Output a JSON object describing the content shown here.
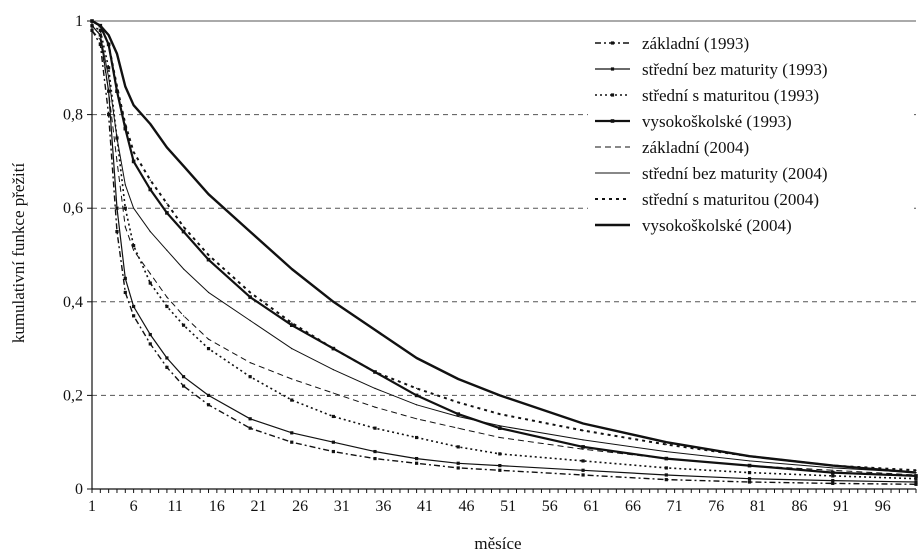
{
  "chart_data": {
    "type": "line",
    "title": "",
    "xlabel": "měsíce",
    "ylabel": "kumulativní funkce přežití",
    "xlim": [
      1,
      100
    ],
    "ylim": [
      0,
      1
    ],
    "x_ticks": [
      1,
      6,
      11,
      16,
      21,
      26,
      31,
      36,
      41,
      46,
      51,
      56,
      61,
      66,
      71,
      76,
      81,
      86,
      91,
      96
    ],
    "y_ticks": [
      0,
      0.2,
      0.4,
      0.6,
      0.8,
      1
    ],
    "y_tick_labels": [
      "0",
      "0,2",
      "0,4",
      "0,6",
      "0,8",
      "1"
    ],
    "grid": "horizontal dashed",
    "legend_position": "top-right",
    "x": [
      1,
      2,
      3,
      4,
      5,
      6,
      8,
      10,
      12,
      15,
      20,
      25,
      30,
      35,
      40,
      45,
      50,
      60,
      70,
      80,
      90,
      100
    ],
    "series": [
      {
        "name": "základní (1993)",
        "style": "dash-dot-markers",
        "values": [
          0.98,
          0.95,
          0.8,
          0.55,
          0.42,
          0.37,
          0.31,
          0.26,
          0.22,
          0.18,
          0.13,
          0.1,
          0.08,
          0.065,
          0.055,
          0.045,
          0.04,
          0.03,
          0.02,
          0.015,
          0.012,
          0.01
        ]
      },
      {
        "name": "střední bez maturity (1993)",
        "style": "solid-markers",
        "values": [
          0.99,
          0.97,
          0.85,
          0.6,
          0.45,
          0.39,
          0.33,
          0.28,
          0.24,
          0.2,
          0.15,
          0.12,
          0.1,
          0.08,
          0.065,
          0.055,
          0.05,
          0.04,
          0.03,
          0.022,
          0.018,
          0.015
        ]
      },
      {
        "name": "střední s maturitou (1993)",
        "style": "dotted-markers",
        "values": [
          0.99,
          0.98,
          0.9,
          0.75,
          0.6,
          0.52,
          0.44,
          0.39,
          0.35,
          0.3,
          0.24,
          0.19,
          0.155,
          0.13,
          0.11,
          0.09,
          0.075,
          0.06,
          0.045,
          0.035,
          0.028,
          0.022
        ]
      },
      {
        "name": "vysokoškolské (1993)",
        "style": "solid-thick-markers",
        "values": [
          1.0,
          0.99,
          0.95,
          0.85,
          0.77,
          0.7,
          0.64,
          0.59,
          0.55,
          0.49,
          0.41,
          0.35,
          0.3,
          0.25,
          0.2,
          0.16,
          0.13,
          0.09,
          0.065,
          0.05,
          0.035,
          0.028
        ]
      },
      {
        "name": "základní (2004)",
        "style": "dashed",
        "values": [
          0.98,
          0.96,
          0.85,
          0.7,
          0.56,
          0.51,
          0.46,
          0.41,
          0.37,
          0.32,
          0.27,
          0.235,
          0.205,
          0.175,
          0.15,
          0.13,
          0.11,
          0.085,
          0.065,
          0.05,
          0.04,
          0.03
        ]
      },
      {
        "name": "střední bez maturity (2004)",
        "style": "thin-solid",
        "values": [
          0.99,
          0.97,
          0.88,
          0.75,
          0.65,
          0.6,
          0.55,
          0.51,
          0.47,
          0.42,
          0.36,
          0.3,
          0.255,
          0.215,
          0.18,
          0.155,
          0.135,
          0.105,
          0.08,
          0.06,
          0.045,
          0.035
        ]
      },
      {
        "name": "střední s maturitou (2004)",
        "style": "dotted",
        "values": [
          1.0,
          0.99,
          0.95,
          0.86,
          0.78,
          0.72,
          0.66,
          0.61,
          0.56,
          0.5,
          0.42,
          0.355,
          0.3,
          0.25,
          0.215,
          0.185,
          0.16,
          0.125,
          0.095,
          0.07,
          0.05,
          0.04
        ]
      },
      {
        "name": "vysokoškolské (2004)",
        "style": "solid-thick",
        "values": [
          1.0,
          0.99,
          0.97,
          0.93,
          0.86,
          0.82,
          0.78,
          0.73,
          0.69,
          0.63,
          0.55,
          0.47,
          0.4,
          0.34,
          0.28,
          0.235,
          0.2,
          0.14,
          0.1,
          0.07,
          0.05,
          0.035
        ]
      }
    ]
  }
}
